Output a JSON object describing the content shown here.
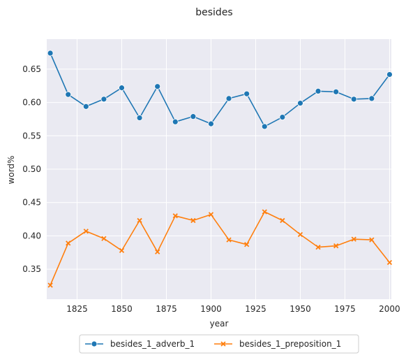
{
  "chart_data": {
    "type": "line",
    "title": "besides",
    "xlabel": "year",
    "ylabel": "word%",
    "xlim": [
      1808,
      2001
    ],
    "ylim": [
      0.305,
      0.695
    ],
    "xticks": [
      1825,
      1850,
      1875,
      1900,
      1925,
      1950,
      1975,
      2000
    ],
    "yticks": [
      0.35,
      0.4,
      0.45,
      0.5,
      0.55,
      0.6,
      0.65
    ],
    "grid": true,
    "legend_position": "bottom-center",
    "x": [
      1810,
      1820,
      1830,
      1840,
      1850,
      1860,
      1870,
      1880,
      1890,
      1900,
      1910,
      1920,
      1930,
      1940,
      1950,
      1960,
      1970,
      1980,
      1990,
      2000
    ],
    "series": [
      {
        "name": "besides_1_adverb_1",
        "color": "#1f77b4",
        "marker": "circle",
        "values": [
          0.674,
          0.612,
          0.594,
          0.605,
          0.622,
          0.577,
          0.624,
          0.571,
          0.579,
          0.568,
          0.606,
          0.613,
          0.564,
          0.578,
          0.599,
          0.617,
          0.616,
          0.605,
          0.606,
          0.642
        ]
      },
      {
        "name": "besides_1_preposition_1",
        "color": "#ff7f0e",
        "marker": "x",
        "values": [
          0.326,
          0.389,
          0.407,
          0.396,
          0.378,
          0.423,
          0.376,
          0.43,
          0.423,
          0.432,
          0.394,
          0.387,
          0.436,
          0.423,
          0.402,
          0.383,
          0.385,
          0.395,
          0.394,
          0.36
        ]
      }
    ]
  }
}
